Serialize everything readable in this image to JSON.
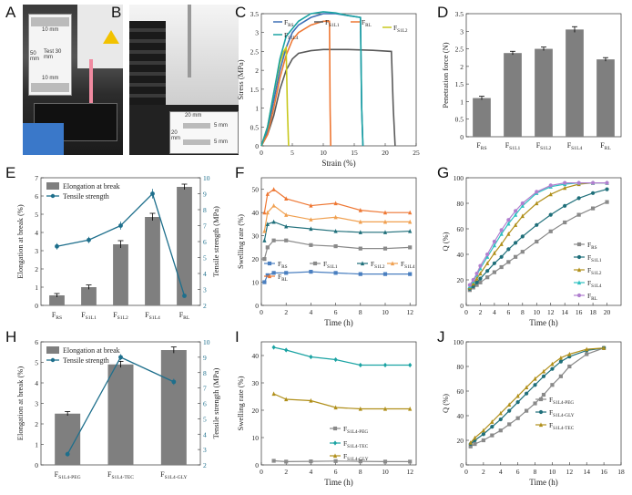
{
  "panel_letters": [
    "A",
    "B",
    "C",
    "D",
    "E",
    "F",
    "G",
    "H",
    "I",
    "J"
  ],
  "photo_a": {
    "lbl_top": "10 mm",
    "lbl_left": "50 mm",
    "lbl_test": "Test 30 mm",
    "lbl_bottom": "10 mm"
  },
  "photo_b": {
    "lbl_width": "20 mm",
    "lbl_height": "20 mm",
    "lbl_a": "5 mm",
    "lbl_b": "5 mm"
  },
  "colors": {
    "RS": "#3d6fb6",
    "S1L1": "#5a5a5a",
    "S1L2": "#c8c81e",
    "S1L4": "#1aa3a3",
    "RL": "#ee7733",
    "bar": "#7f7f7f",
    "ts": "#1e6f8c",
    "blue": "#4a7fc0",
    "gray": "#8a8a8a",
    "teal": "#2e8fa0",
    "orange": "#f0a050",
    "purple": "#b07fcf",
    "gold": "#b08f1a",
    "tealdark": "#1f6f7a"
  },
  "chart_data": [
    {
      "id": "C",
      "type": "line",
      "xlabel": "Strain (%)",
      "ylabel": "Stress (MPa)",
      "xlim": [
        0,
        25
      ],
      "ylim": [
        0,
        3.5
      ],
      "xticks": [
        0,
        5,
        10,
        15,
        20,
        25
      ],
      "yticks": [
        0.0,
        0.5,
        1.0,
        1.5,
        2.0,
        2.5,
        3.0,
        3.5
      ],
      "legend": [
        "F_RS",
        "F_S1L1",
        "F_RL",
        "F_S1L2",
        "F_S1L4"
      ],
      "series": [
        {
          "name": "F_RS",
          "color": "#3d6fb6",
          "x": [
            0,
            1,
            2,
            3,
            4,
            5,
            6,
            8,
            10,
            12,
            14,
            16,
            16.2,
            16.4
          ],
          "y": [
            0,
            0.4,
            1.2,
            2.0,
            2.6,
            3.0,
            3.2,
            3.4,
            3.5,
            3.5,
            3.45,
            3.4,
            1.0,
            0
          ]
        },
        {
          "name": "F_S1L1",
          "color": "#5a5a5a",
          "x": [
            0,
            1,
            2,
            3,
            4,
            5,
            6,
            8,
            10,
            14,
            18,
            21,
            21.3,
            21.6
          ],
          "y": [
            0,
            0.3,
            0.8,
            1.5,
            2.0,
            2.3,
            2.45,
            2.52,
            2.55,
            2.55,
            2.53,
            2.5,
            1.0,
            0
          ]
        },
        {
          "name": "F_RL",
          "color": "#ee7733",
          "x": [
            0,
            1,
            2,
            3,
            4,
            5,
            6,
            8,
            10,
            11,
            11.1,
            11.2
          ],
          "y": [
            0,
            0.3,
            1.0,
            1.8,
            2.4,
            2.8,
            3.0,
            3.2,
            3.3,
            3.3,
            1.0,
            0
          ]
        },
        {
          "name": "F_S1L2",
          "color": "#c8c81e",
          "x": [
            0,
            1,
            2,
            3,
            3.6,
            4,
            4.2,
            4.4
          ],
          "y": [
            0,
            0.5,
            1.4,
            2.2,
            2.5,
            2.6,
            1.0,
            0
          ]
        },
        {
          "name": "F_S1L4",
          "color": "#1aa3a3",
          "x": [
            0,
            1,
            2,
            3,
            4,
            6,
            8,
            10,
            12,
            14,
            16,
            16.2,
            16.4
          ],
          "y": [
            0,
            0.5,
            1.4,
            2.3,
            2.9,
            3.3,
            3.5,
            3.55,
            3.52,
            3.45,
            3.4,
            1.0,
            0
          ]
        }
      ]
    },
    {
      "id": "D",
      "type": "bar",
      "xlabel": "",
      "ylabel": "Penetration force (N)",
      "ylim": [
        0,
        3.5
      ],
      "yticks": [
        0.0,
        0.5,
        1.0,
        1.5,
        2.0,
        2.5,
        3.0,
        3.5
      ],
      "categories": [
        "F_RS",
        "F_S1L1",
        "F_S1L2",
        "F_S1L4",
        "F_RL"
      ],
      "values": [
        1.1,
        2.38,
        2.5,
        3.05,
        2.2
      ],
      "errors": [
        0.05,
        0.05,
        0.05,
        0.08,
        0.05
      ]
    },
    {
      "id": "E",
      "type": "bar",
      "ylabel": "Elongation at break (%)",
      "y2label": "Tensile strength (MPa)",
      "ylim": [
        0,
        7
      ],
      "y2lim": [
        2,
        10
      ],
      "yticks": [
        0,
        1,
        2,
        3,
        4,
        5,
        6,
        7
      ],
      "y2ticks": [
        2,
        3,
        4,
        5,
        6,
        7,
        8,
        9,
        10
      ],
      "legend_bar": "Elongation at break",
      "legend_line": "Tensile strength",
      "categories": [
        "F_RS",
        "F_S1L1",
        "F_S1L2",
        "F_S1L4",
        "F_RL"
      ],
      "values": [
        0.55,
        1.0,
        3.35,
        4.85,
        6.5
      ],
      "errors": [
        0.1,
        0.12,
        0.2,
        0.2,
        0.15
      ],
      "line_values": [
        5.7,
        6.1,
        7.0,
        9.0,
        2.6
      ],
      "line_errors": [
        0.2,
        0.2,
        0.25,
        0.3,
        0.1
      ]
    },
    {
      "id": "F",
      "type": "line",
      "xlabel": "Time (h)",
      "ylabel": "Swelling rate (%)",
      "xlim": [
        0,
        12.5
      ],
      "ylim": [
        0,
        55
      ],
      "xticks": [
        0,
        2,
        4,
        6,
        8,
        10,
        12
      ],
      "yticks": [
        0,
        10,
        20,
        30,
        40,
        50
      ],
      "legend": [
        "F_RS",
        "F_S1L1",
        "F_S1L2",
        "F_S1L4",
        "F_RL"
      ],
      "x": [
        0.25,
        0.5,
        1,
        2,
        4,
        6,
        8,
        10,
        12
      ],
      "series": [
        {
          "name": "F_RS",
          "color": "#4a7fc0",
          "marker": "square",
          "values": [
            10,
            13,
            14,
            14,
            14.5,
            14,
            13.5,
            13.5,
            13.5
          ]
        },
        {
          "name": "F_S1L1",
          "color": "#8a8a8a",
          "marker": "square",
          "values": [
            20,
            25,
            28,
            28,
            26,
            25.5,
            24.5,
            24.5,
            25
          ]
        },
        {
          "name": "F_S1L2",
          "color": "#1f6f7a",
          "marker": "triangle",
          "values": [
            28,
            35,
            36,
            34,
            33,
            32,
            31.5,
            31.5,
            32
          ]
        },
        {
          "name": "F_S1L4",
          "color": "#f0a050",
          "marker": "triangle",
          "values": [
            32,
            40,
            43,
            39,
            37,
            38,
            36,
            36,
            36
          ]
        },
        {
          "name": "F_RL",
          "color": "#ee7733",
          "marker": "triangle",
          "values": [
            40,
            48,
            50,
            46,
            43,
            44,
            41,
            40,
            40
          ]
        }
      ]
    },
    {
      "id": "G",
      "type": "line",
      "xlabel": "Time (h)",
      "ylabel": "Q (%)",
      "xlim": [
        0,
        22
      ],
      "ylim": [
        0,
        100
      ],
      "xticks": [
        0,
        2,
        4,
        6,
        8,
        10,
        12,
        14,
        16,
        18,
        20
      ],
      "yticks": [
        0,
        20,
        40,
        60,
        80,
        100
      ],
      "legend": [
        "F_RS",
        "F_S1L1",
        "F_S1L2",
        "F_S1L4",
        "F_RL"
      ],
      "series": [
        {
          "name": "F_RS",
          "color": "#8a8a8a",
          "marker": "square",
          "x": [
            0.5,
            1,
            1.5,
            2,
            3,
            4,
            5,
            6,
            7,
            8,
            10,
            12,
            14,
            16,
            18,
            20
          ],
          "values": [
            12,
            14,
            16,
            18,
            22,
            26,
            30,
            34,
            38,
            42,
            50,
            58,
            65,
            71,
            76,
            81
          ]
        },
        {
          "name": "F_S1L1",
          "color": "#1f6f7a",
          "marker": "circle",
          "x": [
            0.5,
            1,
            1.5,
            2,
            3,
            4,
            5,
            6,
            7,
            8,
            10,
            12,
            14,
            16,
            18,
            20
          ],
          "values": [
            13,
            15,
            18,
            21,
            27,
            33,
            38,
            44,
            49,
            54,
            63,
            71,
            78,
            84,
            88,
            91
          ]
        },
        {
          "name": "F_S1L2",
          "color": "#b08f1a",
          "marker": "triangle",
          "x": [
            0.5,
            1,
            1.5,
            2,
            3,
            4,
            5,
            6,
            7,
            8,
            10,
            12,
            14,
            16,
            18,
            20
          ],
          "values": [
            14,
            17,
            21,
            25,
            33,
            41,
            48,
            56,
            63,
            70,
            80,
            87,
            92,
            95,
            96,
            96
          ]
        },
        {
          "name": "F_S1L4",
          "color": "#2ec0c0",
          "marker": "triangle",
          "x": [
            0.5,
            1,
            1.5,
            2,
            3,
            4,
            5,
            6,
            7,
            8,
            10,
            12,
            14,
            16,
            18,
            20
          ],
          "values": [
            15,
            19,
            24,
            29,
            38,
            47,
            56,
            64,
            71,
            78,
            88,
            93,
            95,
            96,
            96,
            96
          ]
        },
        {
          "name": "F_RL",
          "color": "#b07fcf",
          "marker": "circle",
          "x": [
            0.5,
            1,
            1.5,
            2,
            3,
            4,
            5,
            6,
            7,
            8,
            10,
            12,
            14,
            16,
            18,
            20
          ],
          "values": [
            16,
            20,
            25,
            31,
            40,
            50,
            59,
            67,
            74,
            80,
            89,
            94,
            96,
            96,
            96,
            96
          ]
        }
      ]
    },
    {
      "id": "H",
      "type": "bar",
      "ylabel": "Elongation at break (%)",
      "y2label": "Tensile strength (MPa)",
      "ylim": [
        0,
        6
      ],
      "y2lim": [
        2,
        10
      ],
      "yticks": [
        0,
        1,
        2,
        3,
        4,
        5,
        6
      ],
      "y2ticks": [
        2,
        3,
        4,
        5,
        6,
        7,
        8,
        9,
        10
      ],
      "legend_bar": "Elongation at break",
      "legend_line": "Tensile strength",
      "categories": [
        "F_S1L4-PEG",
        "F_S1L4-TEC",
        "F_S1L4-GLY"
      ],
      "values": [
        2.5,
        4.9,
        5.6
      ],
      "errors": [
        0.1,
        0.15,
        0.15
      ],
      "line_values": [
        2.7,
        9.0,
        7.4
      ],
      "line_errors": [
        0.15,
        0.2,
        0.2
      ]
    },
    {
      "id": "I",
      "type": "line",
      "xlabel": "Time (h)",
      "ylabel": "Swelling rate (%)",
      "xlim": [
        0,
        12.5
      ],
      "ylim": [
        0,
        45
      ],
      "xticks": [
        0,
        2,
        4,
        6,
        8,
        10,
        12
      ],
      "yticks": [
        0,
        10,
        20,
        30,
        40
      ],
      "legend": [
        "F_S1L4-PEG",
        "F_S1L4-TEC",
        "F_S1L4-GLY"
      ],
      "x": [
        1,
        2,
        4,
        6,
        8,
        10,
        12
      ],
      "series": [
        {
          "name": "F_S1L4-PEG",
          "color": "#8a8a8a",
          "marker": "square",
          "values": [
            1.5,
            1.2,
            1.3,
            1.4,
            1.3,
            1.2,
            1.2
          ]
        },
        {
          "name": "F_S1L4-TEC",
          "color": "#1aa3a3",
          "marker": "diamond",
          "values": [
            43,
            42,
            39.5,
            38.5,
            36.5,
            36.5,
            36.5
          ]
        },
        {
          "name": "F_S1L4-GLY",
          "color": "#b08f1a",
          "marker": "triangle",
          "values": [
            26,
            24,
            23.5,
            21,
            20.5,
            20.5,
            20.5
          ]
        }
      ]
    },
    {
      "id": "J",
      "type": "line",
      "xlabel": "Time (h)",
      "ylabel": "Q (%)",
      "xlim": [
        0,
        18
      ],
      "ylim": [
        0,
        100
      ],
      "xticks": [
        0,
        2,
        4,
        6,
        8,
        10,
        12,
        14,
        16,
        18
      ],
      "yticks": [
        0,
        20,
        40,
        60,
        80,
        100
      ],
      "legend": [
        "F_S1L4-PEG",
        "F_S1L4-GLY",
        "F_S1L4-TEC"
      ],
      "series": [
        {
          "name": "F_S1L4-PEG",
          "color": "#8a8a8a",
          "marker": "square",
          "x": [
            0.5,
            1,
            2,
            3,
            4,
            5,
            6,
            7,
            8,
            9,
            10,
            11,
            12,
            14,
            16
          ],
          "values": [
            15,
            17,
            20,
            24,
            28,
            33,
            38,
            44,
            50,
            57,
            65,
            72,
            80,
            90,
            95
          ]
        },
        {
          "name": "F_S1L4-GLY",
          "color": "#1f6f7a",
          "marker": "circle",
          "x": [
            0.5,
            1,
            2,
            3,
            4,
            5,
            6,
            7,
            8,
            9,
            10,
            11,
            12,
            14,
            16
          ],
          "values": [
            17,
            20,
            25,
            31,
            37,
            44,
            51,
            58,
            65,
            72,
            78,
            84,
            88,
            93,
            95
          ]
        },
        {
          "name": "F_S1L4-TEC",
          "color": "#b08f1a",
          "marker": "triangle",
          "x": [
            0.5,
            1,
            2,
            3,
            4,
            5,
            6,
            7,
            8,
            9,
            10,
            11,
            12,
            14,
            16
          ],
          "values": [
            18,
            22,
            28,
            35,
            42,
            49,
            56,
            63,
            70,
            76,
            82,
            87,
            90,
            94,
            95
          ]
        }
      ]
    }
  ]
}
